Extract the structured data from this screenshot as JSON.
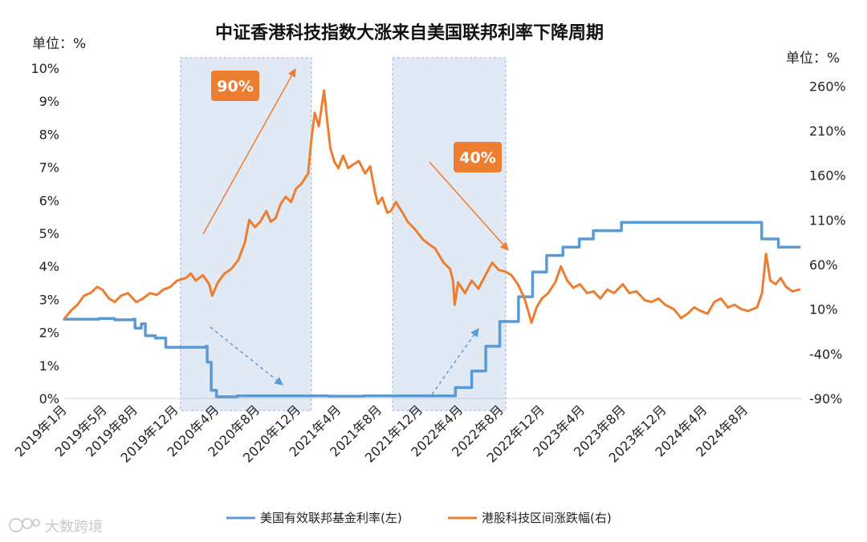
{
  "chart_data": {
    "type": "line",
    "title": "中证香港科技指数大涨来自美国联邦利率下降周期",
    "y_left_unit": "单位：%",
    "y_right_unit": "单位：%",
    "y_left_ticks": [
      "0%",
      "1%",
      "2%",
      "3%",
      "4%",
      "5%",
      "6%",
      "7%",
      "8%",
      "9%",
      "10%"
    ],
    "y_left_range": [
      0,
      10
    ],
    "y_right_ticks": [
      "-90%",
      "-40%",
      "10%",
      "60%",
      "110%",
      "160%",
      "210%",
      "260%"
    ],
    "y_right_range": [
      -90,
      280
    ],
    "x_ticks": [
      "2019年1月",
      "2019年5月",
      "2019年8月",
      "2019年12月",
      "2020年4月",
      "2020年8月",
      "2020年12月",
      "2021年4月",
      "2021年8月",
      "2021年12月",
      "2022年4月",
      "2022年8月",
      "2022年12月",
      "2023年4月",
      "2023年8月",
      "2023年12月",
      "2024年4月",
      "2024年8月"
    ],
    "x_range": [
      "2019-01-01",
      "2025-01-20"
    ],
    "highlight_periods": [
      [
        "2019-12-15",
        "2021-01-10"
      ],
      [
        "2021-09-10",
        "2022-08-15"
      ]
    ],
    "annotations": [
      {
        "label": "90%",
        "date": "2020-02-15",
        "value": 90
      },
      {
        "label": "40%",
        "date": "2022-03-15",
        "value": 40
      }
    ],
    "series": [
      {
        "name": "美国有效联邦基金利率(左)",
        "axis": "left",
        "color": "#5b9bd5",
        "step": true,
        "points": [
          [
            "2019-01-01",
            2.4
          ],
          [
            "2019-04-15",
            2.42
          ],
          [
            "2019-06-01",
            2.38
          ],
          [
            "2019-07-25",
            2.4
          ],
          [
            "2019-08-01",
            2.13
          ],
          [
            "2019-08-20",
            2.26
          ],
          [
            "2019-09-01",
            1.9
          ],
          [
            "2019-10-01",
            1.83
          ],
          [
            "2019-11-01",
            1.55
          ],
          [
            "2020-02-29",
            1.58
          ],
          [
            "2020-03-04",
            1.1
          ],
          [
            "2020-03-16",
            0.25
          ],
          [
            "2020-04-01",
            0.05
          ],
          [
            "2020-06-01",
            0.08
          ],
          [
            "2020-12-31",
            0.08
          ],
          [
            "2021-03-01",
            0.07
          ],
          [
            "2021-06-16",
            0.08
          ],
          [
            "2022-03-17",
            0.33
          ],
          [
            "2022-05-05",
            0.83
          ],
          [
            "2022-06-16",
            1.58
          ],
          [
            "2022-07-28",
            2.33
          ],
          [
            "2022-09-22",
            3.08
          ],
          [
            "2022-11-03",
            3.83
          ],
          [
            "2022-12-15",
            4.33
          ],
          [
            "2023-02-02",
            4.58
          ],
          [
            "2023-03-23",
            4.83
          ],
          [
            "2023-05-04",
            5.08
          ],
          [
            "2023-07-27",
            5.33
          ],
          [
            "2024-09-19",
            4.83
          ],
          [
            "2024-11-08",
            4.58
          ],
          [
            "2024-12-19",
            4.58
          ],
          [
            "2025-01-10",
            4.58
          ]
        ]
      },
      {
        "name": "港股科技区间涨跌幅(右)",
        "axis": "right",
        "color": "#ed7d31",
        "step": false,
        "points": [
          [
            "2019-01-03",
            0
          ],
          [
            "2019-01-20",
            8
          ],
          [
            "2019-02-10",
            15
          ],
          [
            "2019-03-01",
            25
          ],
          [
            "2019-03-20",
            28
          ],
          [
            "2019-04-10",
            35
          ],
          [
            "2019-04-25",
            32
          ],
          [
            "2019-05-15",
            22
          ],
          [
            "2019-06-01",
            18
          ],
          [
            "2019-06-20",
            25
          ],
          [
            "2019-07-10",
            28
          ],
          [
            "2019-08-05",
            18
          ],
          [
            "2019-08-25",
            22
          ],
          [
            "2019-09-15",
            28
          ],
          [
            "2019-10-05",
            26
          ],
          [
            "2019-10-25",
            32
          ],
          [
            "2019-11-15",
            35
          ],
          [
            "2019-12-05",
            42
          ],
          [
            "2019-12-31",
            45
          ],
          [
            "2020-01-15",
            50
          ],
          [
            "2020-01-30",
            42
          ],
          [
            "2020-02-20",
            48
          ],
          [
            "2020-03-10",
            38
          ],
          [
            "2020-03-19",
            25
          ],
          [
            "2020-04-05",
            40
          ],
          [
            "2020-04-25",
            50
          ],
          [
            "2020-05-15",
            55
          ],
          [
            "2020-06-05",
            65
          ],
          [
            "2020-06-25",
            85
          ],
          [
            "2020-07-08",
            110
          ],
          [
            "2020-07-25",
            102
          ],
          [
            "2020-08-10",
            108
          ],
          [
            "2020-08-28",
            120
          ],
          [
            "2020-09-10",
            108
          ],
          [
            "2020-09-25",
            112
          ],
          [
            "2020-10-10",
            128
          ],
          [
            "2020-10-25",
            136
          ],
          [
            "2020-11-10",
            130
          ],
          [
            "2020-11-25",
            145
          ],
          [
            "2020-12-10",
            150
          ],
          [
            "2020-12-31",
            162
          ],
          [
            "2021-01-10",
            200
          ],
          [
            "2021-01-20",
            230
          ],
          [
            "2021-02-01",
            215
          ],
          [
            "2021-02-17",
            255
          ],
          [
            "2021-02-25",
            225
          ],
          [
            "2021-03-08",
            190
          ],
          [
            "2021-03-20",
            175
          ],
          [
            "2021-04-01",
            168
          ],
          [
            "2021-04-15",
            182
          ],
          [
            "2021-04-30",
            168
          ],
          [
            "2021-05-15",
            172
          ],
          [
            "2021-06-01",
            176
          ],
          [
            "2021-06-20",
            162
          ],
          [
            "2021-07-05",
            170
          ],
          [
            "2021-07-20",
            140
          ],
          [
            "2021-07-28",
            128
          ],
          [
            "2021-08-10",
            135
          ],
          [
            "2021-08-25",
            118
          ],
          [
            "2021-09-05",
            120
          ],
          [
            "2021-09-20",
            130
          ],
          [
            "2021-10-10",
            118
          ],
          [
            "2021-10-25",
            108
          ],
          [
            "2021-11-15",
            100
          ],
          [
            "2021-12-10",
            88
          ],
          [
            "2021-12-31",
            82
          ],
          [
            "2022-01-15",
            78
          ],
          [
            "2022-02-10",
            62
          ],
          [
            "2022-03-01",
            55
          ],
          [
            "2022-03-10",
            42
          ],
          [
            "2022-03-15",
            15
          ],
          [
            "2022-03-25",
            40
          ],
          [
            "2022-04-15",
            28
          ],
          [
            "2022-05-05",
            42
          ],
          [
            "2022-05-25",
            33
          ],
          [
            "2022-06-15",
            48
          ],
          [
            "2022-07-05",
            62
          ],
          [
            "2022-07-25",
            54
          ],
          [
            "2022-08-15",
            52
          ],
          [
            "2022-09-01",
            48
          ],
          [
            "2022-09-20",
            38
          ],
          [
            "2022-10-10",
            22
          ],
          [
            "2022-10-31",
            -5
          ],
          [
            "2022-11-15",
            12
          ],
          [
            "2022-12-01",
            22
          ],
          [
            "2022-12-20",
            28
          ],
          [
            "2023-01-10",
            40
          ],
          [
            "2023-01-27",
            58
          ],
          [
            "2023-02-15",
            42
          ],
          [
            "2023-03-05",
            34
          ],
          [
            "2023-03-25",
            38
          ],
          [
            "2023-04-15",
            28
          ],
          [
            "2023-05-05",
            30
          ],
          [
            "2023-05-25",
            22
          ],
          [
            "2023-06-15",
            32
          ],
          [
            "2023-07-05",
            28
          ],
          [
            "2023-07-31",
            38
          ],
          [
            "2023-08-20",
            28
          ],
          [
            "2023-09-10",
            30
          ],
          [
            "2023-10-05",
            20
          ],
          [
            "2023-10-25",
            18
          ],
          [
            "2023-11-15",
            22
          ],
          [
            "2023-12-05",
            15
          ],
          [
            "2023-12-31",
            10
          ],
          [
            "2024-01-22",
            0
          ],
          [
            "2024-02-10",
            5
          ],
          [
            "2024-03-01",
            12
          ],
          [
            "2024-03-20",
            8
          ],
          [
            "2024-04-10",
            5
          ],
          [
            "2024-04-30",
            18
          ],
          [
            "2024-05-20",
            22
          ],
          [
            "2024-06-10",
            12
          ],
          [
            "2024-06-30",
            15
          ],
          [
            "2024-07-20",
            10
          ],
          [
            "2024-08-10",
            8
          ],
          [
            "2024-09-05",
            12
          ],
          [
            "2024-09-20",
            28
          ],
          [
            "2024-10-02",
            72
          ],
          [
            "2024-10-15",
            42
          ],
          [
            "2024-10-31",
            38
          ],
          [
            "2024-11-15",
            45
          ],
          [
            "2024-12-01",
            35
          ],
          [
            "2024-12-20",
            30
          ],
          [
            "2025-01-10",
            32
          ]
        ]
      }
    ],
    "legend_position": "bottom"
  },
  "watermark": {
    "text": "大数跨境"
  }
}
